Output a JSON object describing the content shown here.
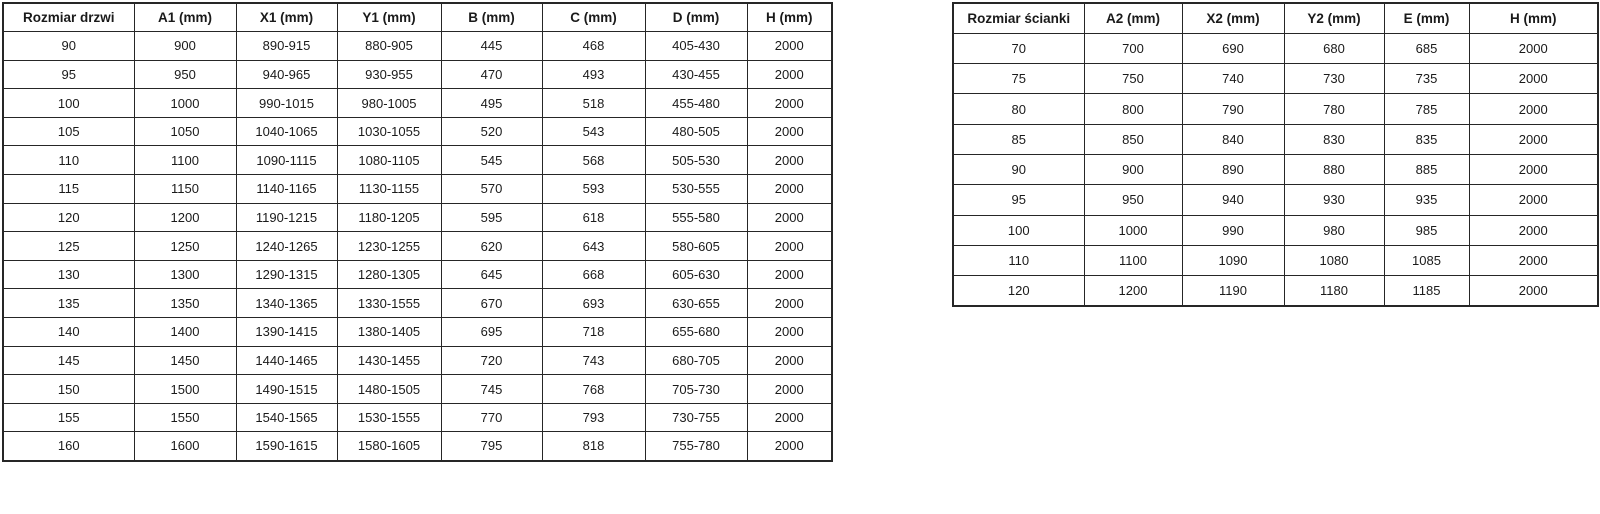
{
  "page": {
    "background_color": "#ffffff",
    "border_color": "#262626",
    "text_color": "#1a1a1a"
  },
  "door_table": {
    "title_column": "Rozmiar drzwi",
    "headers": [
      "Rozmiar drzwi",
      "A1 (mm)",
      "X1 (mm)",
      "Y1 (mm)",
      "B (mm)",
      "C (mm)",
      "D (mm)",
      "H (mm)"
    ],
    "rows": [
      [
        "90",
        "900",
        "890-915",
        "880-905",
        "445",
        "468",
        "405-430",
        "2000"
      ],
      [
        "95",
        "950",
        "940-965",
        "930-955",
        "470",
        "493",
        "430-455",
        "2000"
      ],
      [
        "100",
        "1000",
        "990-1015",
        "980-1005",
        "495",
        "518",
        "455-480",
        "2000"
      ],
      [
        "105",
        "1050",
        "1040-1065",
        "1030-1055",
        "520",
        "543",
        "480-505",
        "2000"
      ],
      [
        "110",
        "1100",
        "1090-1115",
        "1080-1105",
        "545",
        "568",
        "505-530",
        "2000"
      ],
      [
        "115",
        "1150",
        "1140-1165",
        "1130-1155",
        "570",
        "593",
        "530-555",
        "2000"
      ],
      [
        "120",
        "1200",
        "1190-1215",
        "1180-1205",
        "595",
        "618",
        "555-580",
        "2000"
      ],
      [
        "125",
        "1250",
        "1240-1265",
        "1230-1255",
        "620",
        "643",
        "580-605",
        "2000"
      ],
      [
        "130",
        "1300",
        "1290-1315",
        "1280-1305",
        "645",
        "668",
        "605-630",
        "2000"
      ],
      [
        "135",
        "1350",
        "1340-1365",
        "1330-1555",
        "670",
        "693",
        "630-655",
        "2000"
      ],
      [
        "140",
        "1400",
        "1390-1415",
        "1380-1405",
        "695",
        "718",
        "655-680",
        "2000"
      ],
      [
        "145",
        "1450",
        "1440-1465",
        "1430-1455",
        "720",
        "743",
        "680-705",
        "2000"
      ],
      [
        "150",
        "1500",
        "1490-1515",
        "1480-1505",
        "745",
        "768",
        "705-730",
        "2000"
      ],
      [
        "155",
        "1550",
        "1540-1565",
        "1530-1555",
        "770",
        "793",
        "730-755",
        "2000"
      ],
      [
        "160",
        "1600",
        "1590-1615",
        "1580-1605",
        "795",
        "818",
        "755-780",
        "2000"
      ]
    ]
  },
  "wall_table": {
    "title_column": "Rozmiar ścianki",
    "headers": [
      "Rozmiar ścianki",
      "A2 (mm)",
      "X2 (mm)",
      "Y2 (mm)",
      "E (mm)",
      "H (mm)"
    ],
    "rows": [
      [
        "70",
        "700",
        "690",
        "680",
        "685",
        "2000"
      ],
      [
        "75",
        "750",
        "740",
        "730",
        "735",
        "2000"
      ],
      [
        "80",
        "800",
        "790",
        "780",
        "785",
        "2000"
      ],
      [
        "85",
        "850",
        "840",
        "830",
        "835",
        "2000"
      ],
      [
        "90",
        "900",
        "890",
        "880",
        "885",
        "2000"
      ],
      [
        "95",
        "950",
        "940",
        "930",
        "935",
        "2000"
      ],
      [
        "100",
        "1000",
        "990",
        "980",
        "985",
        "2000"
      ],
      [
        "110",
        "1100",
        "1090",
        "1080",
        "1085",
        "2000"
      ],
      [
        "120",
        "1200",
        "1190",
        "1180",
        "1185",
        "2000"
      ]
    ]
  }
}
